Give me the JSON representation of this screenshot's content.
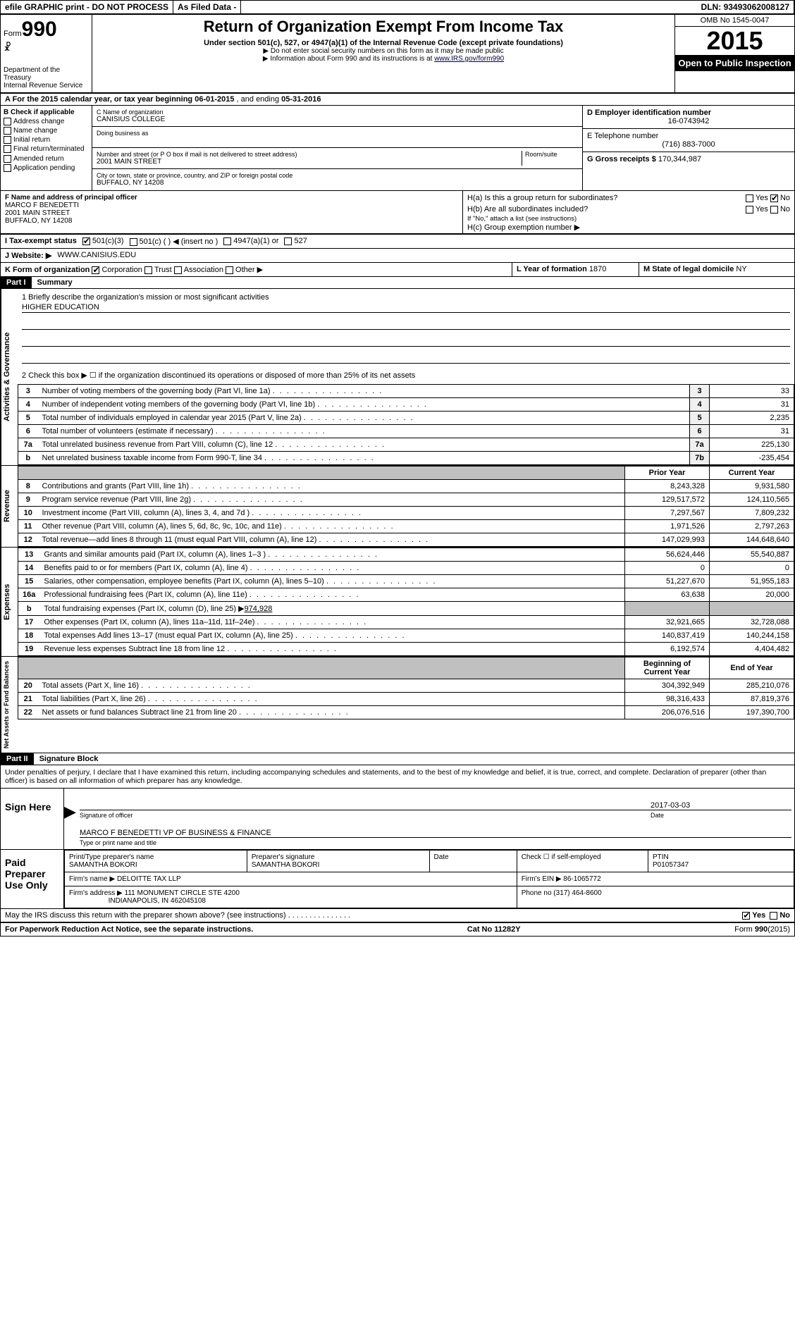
{
  "topbar": {
    "efile": "efile GRAPHIC print - DO NOT PROCESS",
    "asfiled": "As Filed Data -",
    "dln_label": "DLN:",
    "dln": "93493062008127"
  },
  "head": {
    "form_word": "Form",
    "form_num": "990",
    "dept": "Department of the Treasury",
    "irs": "Internal Revenue Service",
    "title": "Return of Organization Exempt From Income Tax",
    "subtitle": "Under section 501(c), 527, or 4947(a)(1) of the Internal Revenue Code (except private foundations)",
    "note1": "▶ Do not enter social security numbers on this form as it may be made public",
    "note2_pre": "▶ Information about Form 990 and its instructions is at ",
    "note2_link": "www.IRS.gov/form990",
    "omb": "OMB No 1545-0047",
    "year": "2015",
    "inspection": "Open to Public Inspection"
  },
  "row_a": {
    "text_pre": "A  For the 2015 calendar year, or tax year beginning ",
    "begin": "06-01-2015",
    "mid": " , and ending ",
    "end": "05-31-2016"
  },
  "section_b": {
    "header": "B  Check if applicable",
    "items": [
      "Address change",
      "Name change",
      "Initial return",
      "Final return/terminated",
      "Amended return",
      "Application pending"
    ]
  },
  "section_c": {
    "name_label": "C Name of organization",
    "name": "CANISIUS COLLEGE",
    "dba_label": "Doing business as",
    "dba": "",
    "street_label": "Number and street (or P O box if mail is not delivered to street address)",
    "room_label": "Room/suite",
    "street": "2001 MAIN STREET",
    "city_label": "City or town, state or province, country, and ZIP or foreign postal code",
    "city": "BUFFALO, NY 14208"
  },
  "section_d": {
    "ein_label": "D Employer identification number",
    "ein": "16-0743942",
    "phone_label": "E Telephone number",
    "phone": "(716) 883-7000",
    "gross_label": "G Gross receipts $",
    "gross": "170,344,987"
  },
  "section_f": {
    "label": "F Name and address of principal officer",
    "name": "MARCO F BENEDETTI",
    "street": "2001 MAIN STREET",
    "city": "BUFFALO, NY 14208"
  },
  "section_h": {
    "a": "H(a)  Is this a group return for subordinates?",
    "a_ans": "No",
    "b": "H(b)  Are all subordinates included?",
    "b_note": "If \"No,\" attach a list (see instructions)",
    "c": "H(c)  Group exemption number ▶"
  },
  "row_i": {
    "label": "I  Tax-exempt status",
    "opt1": "501(c)(3)",
    "opt2": "501(c) (  ) ◀ (insert no )",
    "opt3": "4947(a)(1) or",
    "opt4": "527"
  },
  "row_j": {
    "label": "J  Website: ▶",
    "value": "WWW.CANISIUS.EDU"
  },
  "row_k": {
    "label": "K Form of organization",
    "opts": [
      "Corporation",
      "Trust",
      "Association",
      "Other ▶"
    ],
    "year_label": "L Year of formation",
    "year": "1870",
    "domicile_label": "M State of legal domicile",
    "domicile": "NY"
  },
  "part1": {
    "header": "Part I",
    "title": "Summary",
    "line1_label": "1 Briefly describe the organization's mission or most significant activities",
    "line1_value": "HIGHER EDUCATION",
    "line2": "2  Check this box ▶ ☐ if the organization discontinued its operations or disposed of more than 25% of its net assets",
    "vtab_gov": "Activities & Governance",
    "vtab_rev": "Revenue",
    "vtab_exp": "Expenses",
    "vtab_net": "Net Assets or Fund Balances",
    "gov_rows": [
      {
        "n": "3",
        "desc": "Number of voting members of the governing body (Part VI, line 1a)",
        "box": "3",
        "val": "33"
      },
      {
        "n": "4",
        "desc": "Number of independent voting members of the governing body (Part VI, line 1b)",
        "box": "4",
        "val": "31"
      },
      {
        "n": "5",
        "desc": "Total number of individuals employed in calendar year 2015 (Part V, line 2a)",
        "box": "5",
        "val": "2,235"
      },
      {
        "n": "6",
        "desc": "Total number of volunteers (estimate if necessary)",
        "box": "6",
        "val": "31"
      },
      {
        "n": "7a",
        "desc": "Total unrelated business revenue from Part VIII, column (C), line 12",
        "box": "7a",
        "val": "225,130"
      },
      {
        "n": "b",
        "desc": "Net unrelated business taxable income from Form 990-T, line 34",
        "box": "7b",
        "val": "-235,454"
      }
    ],
    "col_hdr_prior": "Prior Year",
    "col_hdr_curr": "Current Year",
    "rev_rows": [
      {
        "n": "8",
        "desc": "Contributions and grants (Part VIII, line 1h)",
        "py": "8,243,328",
        "cy": "9,931,580"
      },
      {
        "n": "9",
        "desc": "Program service revenue (Part VIII, line 2g)",
        "py": "129,517,572",
        "cy": "124,110,565"
      },
      {
        "n": "10",
        "desc": "Investment income (Part VIII, column (A), lines 3, 4, and 7d )",
        "py": "7,297,567",
        "cy": "7,809,232"
      },
      {
        "n": "11",
        "desc": "Other revenue (Part VIII, column (A), lines 5, 6d, 8c, 9c, 10c, and 11e)",
        "py": "1,971,526",
        "cy": "2,797,263"
      },
      {
        "n": "12",
        "desc": "Total revenue—add lines 8 through 11 (must equal Part VIII, column (A), line 12)",
        "py": "147,029,993",
        "cy": "144,648,640"
      }
    ],
    "exp_rows": [
      {
        "n": "13",
        "desc": "Grants and similar amounts paid (Part IX, column (A), lines 1–3 )",
        "py": "56,624,446",
        "cy": "55,540,887"
      },
      {
        "n": "14",
        "desc": "Benefits paid to or for members (Part IX, column (A), line 4)",
        "py": "0",
        "cy": "0"
      },
      {
        "n": "15in",
        "desc": "Salaries, other compensation, employee benefits (Part IX, column (A), lines 5–10)",
        "py": "51,227,670",
        "cy": "51,955,183",
        "n_disp": "15"
      },
      {
        "n": "16a",
        "desc": "Professional fundraising fees (Part IX, column (A), line 11e)",
        "py": "63,638",
        "cy": "20,000"
      },
      {
        "n": "b",
        "desc": "Total fundraising expenses (Part IX, column (D), line 25) ▶",
        "val_inline": "974,928",
        "py": "",
        "cy": "",
        "shade": true
      },
      {
        "n": "17",
        "desc": "Other expenses (Part IX, column (A), lines 11a–11d, 11f–24e)",
        "py": "32,921,665",
        "cy": "32,728,088"
      },
      {
        "n": "18",
        "desc": "Total expenses Add lines 13–17 (must equal Part IX, column (A), line 25)",
        "py": "140,837,419",
        "cy": "140,244,158"
      },
      {
        "n": "19",
        "desc": "Revenue less expenses Subtract line 18 from line 12",
        "py": "6,192,574",
        "cy": "4,404,482"
      }
    ],
    "net_hdr_begin": "Beginning of Current Year",
    "net_hdr_end": "End of Year",
    "net_rows": [
      {
        "n": "20",
        "desc": "Total assets (Part X, line 16)",
        "py": "304,392,949",
        "cy": "285,210,076"
      },
      {
        "n": "21",
        "desc": "Total liabilities (Part X, line 26)",
        "py": "98,316,433",
        "cy": "87,819,376"
      },
      {
        "n": "22",
        "desc": "Net assets or fund balances Subtract line 21 from line 20",
        "py": "206,076,516",
        "cy": "197,390,700"
      }
    ]
  },
  "part2": {
    "header": "Part II",
    "title": "Signature Block",
    "perjury": "Under penalties of perjury, I declare that I have examined this return, including accompanying schedules and statements, and to the best of my knowledge and belief, it is true, correct, and complete. Declaration of preparer (other than officer) is based on all information of which preparer has any knowledge.",
    "sign_here": "Sign Here",
    "sig_officer": "Signature of officer",
    "sig_date": "2017-03-03",
    "date_lbl": "Date",
    "officer_name": "MARCO F BENEDETTI VP OF BUSINESS & FINANCE",
    "type_name": "Type or print name and title",
    "paid_prep": "Paid Preparer Use Only",
    "prep_name_lbl": "Print/Type preparer's name",
    "prep_name": "SAMANTHA BOKORI",
    "prep_sig_lbl": "Preparer's signature",
    "prep_sig": "SAMANTHA BOKORI",
    "prep_date_lbl": "Date",
    "self_emp": "Check ☐ if self-employed",
    "ptin_lbl": "PTIN",
    "ptin": "P01057347",
    "firm_name_lbl": "Firm's name   ▶",
    "firm_name": "DELOITTE TAX LLP",
    "firm_ein_lbl": "Firm's EIN ▶",
    "firm_ein": "86-1065772",
    "firm_addr_lbl": "Firm's address ▶",
    "firm_addr": "111 MONUMENT CIRCLE STE 4200",
    "firm_city": "INDIANAPOLIS, IN 462045108",
    "firm_phone_lbl": "Phone no",
    "firm_phone": "(317) 464-8600",
    "discuss": "May the IRS discuss this return with the preparer shown above? (see instructions)",
    "yes": "Yes",
    "no": "No"
  },
  "footer": {
    "paperwork": "For Paperwork Reduction Act Notice, see the separate instructions.",
    "catno": "Cat No 11282Y",
    "formrev": "Form 990 (2015)"
  },
  "colors": {
    "black": "#000000",
    "white": "#ffffff",
    "shade": "#c0c0c0"
  }
}
